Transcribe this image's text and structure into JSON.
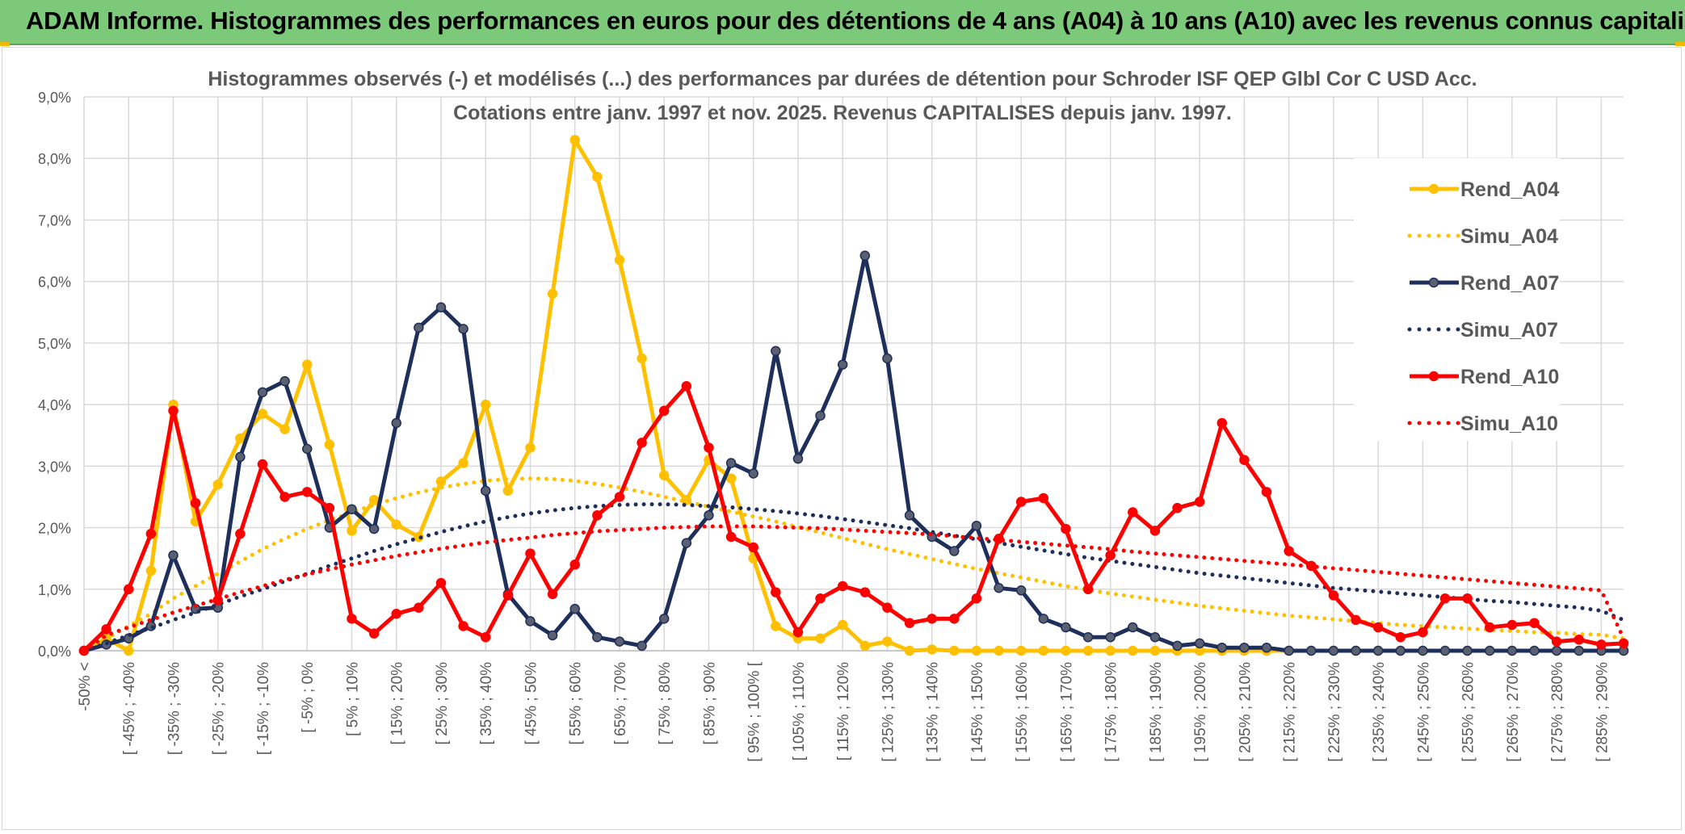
{
  "header": {
    "title": "ADAM Informe. Histogrammes des performances en euros pour des détentions de 4 ans (A04) à 10 ans (A10) avec les revenus connus capitalisés"
  },
  "colors": {
    "banner": "#7dc97a",
    "a04": "#ffc000",
    "a07": "#1f2f5c",
    "a10": "#ff0000",
    "grid": "#d9d9d9",
    "axis_text": "#595959"
  },
  "chart_data": {
    "type": "line",
    "title": "Histogrammes observés (-) et modélisés (...) des performances par durées de détention pour Schroder ISF QEP Glbl Cor C USD Acc.",
    "subtitle": "Cotations entre janv. 1997 et nov. 2025. Revenus CAPITALISES depuis janv. 1997.",
    "ylim": [
      0,
      9
    ],
    "yticks": [
      "0,0%",
      "1,0%",
      "2,0%",
      "3,0%",
      "4,0%",
      "5,0%",
      "6,0%",
      "7,0%",
      "8,0%",
      "9,0%"
    ],
    "grid": true,
    "legend_position": "right",
    "x_labels": [
      "-50% <",
      "[ -45% ; -40%",
      "[ -35% ; -30%",
      "[ -25% ; -20%",
      "[ -15% ; -10%",
      "[ -5% ; 0%",
      "[ 5% ; 10%",
      "[ 15% ; 20%",
      "[ 25% ; 30%",
      "[ 35% ; 40%",
      "[ 45% ; 50%",
      "[ 55% ; 60%",
      "[ 65% ; 70%",
      "[ 75% ; 80%",
      "[ 85% ; 90%",
      "[ 95% ; 100% [",
      "[ 105% ; 110%",
      "[ 115% ; 120%",
      "[ 125% ; 130%",
      "[ 135% ; 140%",
      "[ 145% ; 150%",
      "[ 155% ; 160%",
      "[ 165% ; 170%",
      "[ 175% ; 180%",
      "[ 185% ; 190%",
      "[ 195% ; 200%",
      "[ 205% ; 210%",
      "[ 215% ; 220%",
      "[ 225% ; 230%",
      "[ 235% ; 240%",
      "[ 245% ; 250%",
      "[ 255% ; 260%",
      "[ 265% ; 270%",
      "[ 275% ; 280%",
      "[ 285% ; 290%"
    ],
    "series": [
      {
        "name": "Rend_A04",
        "style": "solid",
        "color": "#ffc000",
        "values": [
          0,
          0.2,
          0,
          1.3,
          4.0,
          2.1,
          2.7,
          3.45,
          3.85,
          3.6,
          4.65,
          3.35,
          1.95,
          2.45,
          2.05,
          1.85,
          2.75,
          3.05,
          4.0,
          2.6,
          3.3,
          5.8,
          8.3,
          7.7,
          6.35,
          4.75,
          2.85,
          2.45,
          3.1,
          2.8,
          1.5,
          0.4,
          0.2,
          0.2,
          0.42,
          0.08,
          0.15,
          0.0,
          0.02,
          0,
          0,
          0,
          0,
          0,
          0,
          0,
          0,
          0,
          0,
          0,
          0,
          0,
          0,
          0,
          0,
          0,
          0,
          0,
          0,
          0,
          0,
          0,
          0,
          0,
          0,
          0,
          0,
          0,
          0,
          0
        ]
      },
      {
        "name": "Simu_A04",
        "style": "dotted",
        "color": "#ffc000",
        "values": [
          0,
          0.2,
          0.4,
          0.6,
          0.85,
          1.05,
          1.25,
          1.45,
          1.65,
          1.82,
          1.98,
          2.12,
          2.25,
          2.37,
          2.48,
          2.57,
          2.65,
          2.71,
          2.76,
          2.79,
          2.8,
          2.79,
          2.76,
          2.71,
          2.65,
          2.58,
          2.5,
          2.42,
          2.34,
          2.26,
          2.18,
          2.1,
          2.01,
          1.92,
          1.83,
          1.74,
          1.65,
          1.57,
          1.49,
          1.41,
          1.33,
          1.26,
          1.19,
          1.12,
          1.05,
          0.99,
          0.93,
          0.88,
          0.83,
          0.78,
          0.73,
          0.69,
          0.65,
          0.61,
          0.57,
          0.54,
          0.51,
          0.48,
          0.45,
          0.42,
          0.4,
          0.38,
          0.36,
          0.34,
          0.32,
          0.3,
          0.29,
          0.27,
          0.26,
          0.2
        ]
      },
      {
        "name": "Rend_A07",
        "style": "solid",
        "color": "#1f2f5c",
        "values": [
          0,
          0.1,
          0.2,
          0.4,
          1.55,
          0.68,
          0.7,
          3.15,
          4.2,
          4.38,
          3.28,
          2.0,
          2.3,
          1.98,
          3.7,
          5.25,
          5.58,
          5.23,
          2.6,
          0.92,
          0.48,
          0.25,
          0.68,
          0.22,
          0.15,
          0.08,
          0.52,
          1.75,
          2.2,
          3.05,
          2.88,
          4.87,
          3.12,
          3.82,
          4.65,
          6.42,
          4.75,
          2.2,
          1.85,
          1.62,
          2.03,
          1.02,
          0.98,
          0.52,
          0.38,
          0.22,
          0.22,
          0.38,
          0.22,
          0.08,
          0.12,
          0.05,
          0.05,
          0.05,
          0,
          0,
          0,
          0,
          0,
          0,
          0,
          0,
          0,
          0,
          0,
          0,
          0,
          0,
          0,
          0
        ]
      },
      {
        "name": "Simu_A07",
        "style": "dotted",
        "color": "#1f2f5c",
        "values": [
          0,
          0.12,
          0.25,
          0.37,
          0.5,
          0.62,
          0.75,
          0.88,
          1.0,
          1.13,
          1.25,
          1.38,
          1.5,
          1.62,
          1.73,
          1.83,
          1.93,
          2.02,
          2.1,
          2.17,
          2.23,
          2.28,
          2.32,
          2.35,
          2.37,
          2.38,
          2.38,
          2.37,
          2.35,
          2.33,
          2.3,
          2.27,
          2.23,
          2.19,
          2.14,
          2.09,
          2.04,
          1.99,
          1.93,
          1.87,
          1.81,
          1.75,
          1.69,
          1.63,
          1.57,
          1.51,
          1.46,
          1.41,
          1.36,
          1.31,
          1.26,
          1.22,
          1.18,
          1.14,
          1.1,
          1.06,
          1.02,
          0.99,
          0.96,
          0.93,
          0.9,
          0.87,
          0.84,
          0.81,
          0.79,
          0.76,
          0.73,
          0.7,
          0.65,
          0.5
        ]
      },
      {
        "name": "Rend_A10",
        "style": "solid",
        "color": "#ff0000",
        "values": [
          0,
          0.35,
          1.0,
          1.9,
          3.9,
          2.4,
          0.82,
          1.9,
          3.03,
          2.5,
          2.58,
          2.32,
          0.52,
          0.28,
          0.6,
          0.7,
          1.1,
          0.4,
          0.22,
          0.9,
          1.58,
          0.92,
          1.4,
          2.2,
          2.5,
          3.38,
          3.9,
          4.3,
          3.3,
          1.85,
          1.68,
          0.95,
          0.3,
          0.85,
          1.05,
          0.95,
          0.7,
          0.45,
          0.52,
          0.52,
          0.85,
          1.82,
          2.42,
          2.48,
          1.98,
          1.0,
          1.55,
          2.25,
          1.95,
          2.32,
          2.42,
          3.7,
          3.1,
          2.58,
          1.62,
          1.38,
          0.9,
          0.5,
          0.38,
          0.22,
          0.3,
          0.85,
          0.85,
          0.38,
          0.42,
          0.45,
          0.15,
          0.18,
          0.1,
          0.12
        ]
      },
      {
        "name": "Simu_A10",
        "style": "dotted",
        "color": "#ff0000",
        "values": [
          0,
          0.25,
          0.38,
          0.5,
          0.62,
          0.73,
          0.84,
          0.95,
          1.05,
          1.15,
          1.24,
          1.32,
          1.4,
          1.47,
          1.54,
          1.6,
          1.66,
          1.71,
          1.76,
          1.8,
          1.84,
          1.88,
          1.91,
          1.94,
          1.96,
          1.98,
          2.0,
          2.01,
          2.02,
          2.02,
          2.02,
          2.01,
          2.0,
          1.99,
          1.97,
          1.95,
          1.93,
          1.91,
          1.89,
          1.86,
          1.83,
          1.8,
          1.77,
          1.74,
          1.71,
          1.68,
          1.65,
          1.61,
          1.58,
          1.55,
          1.52,
          1.49,
          1.46,
          1.43,
          1.4,
          1.37,
          1.34,
          1.31,
          1.28,
          1.25,
          1.22,
          1.19,
          1.16,
          1.13,
          1.1,
          1.07,
          1.04,
          1.01,
          0.98,
          0.2
        ]
      }
    ]
  }
}
